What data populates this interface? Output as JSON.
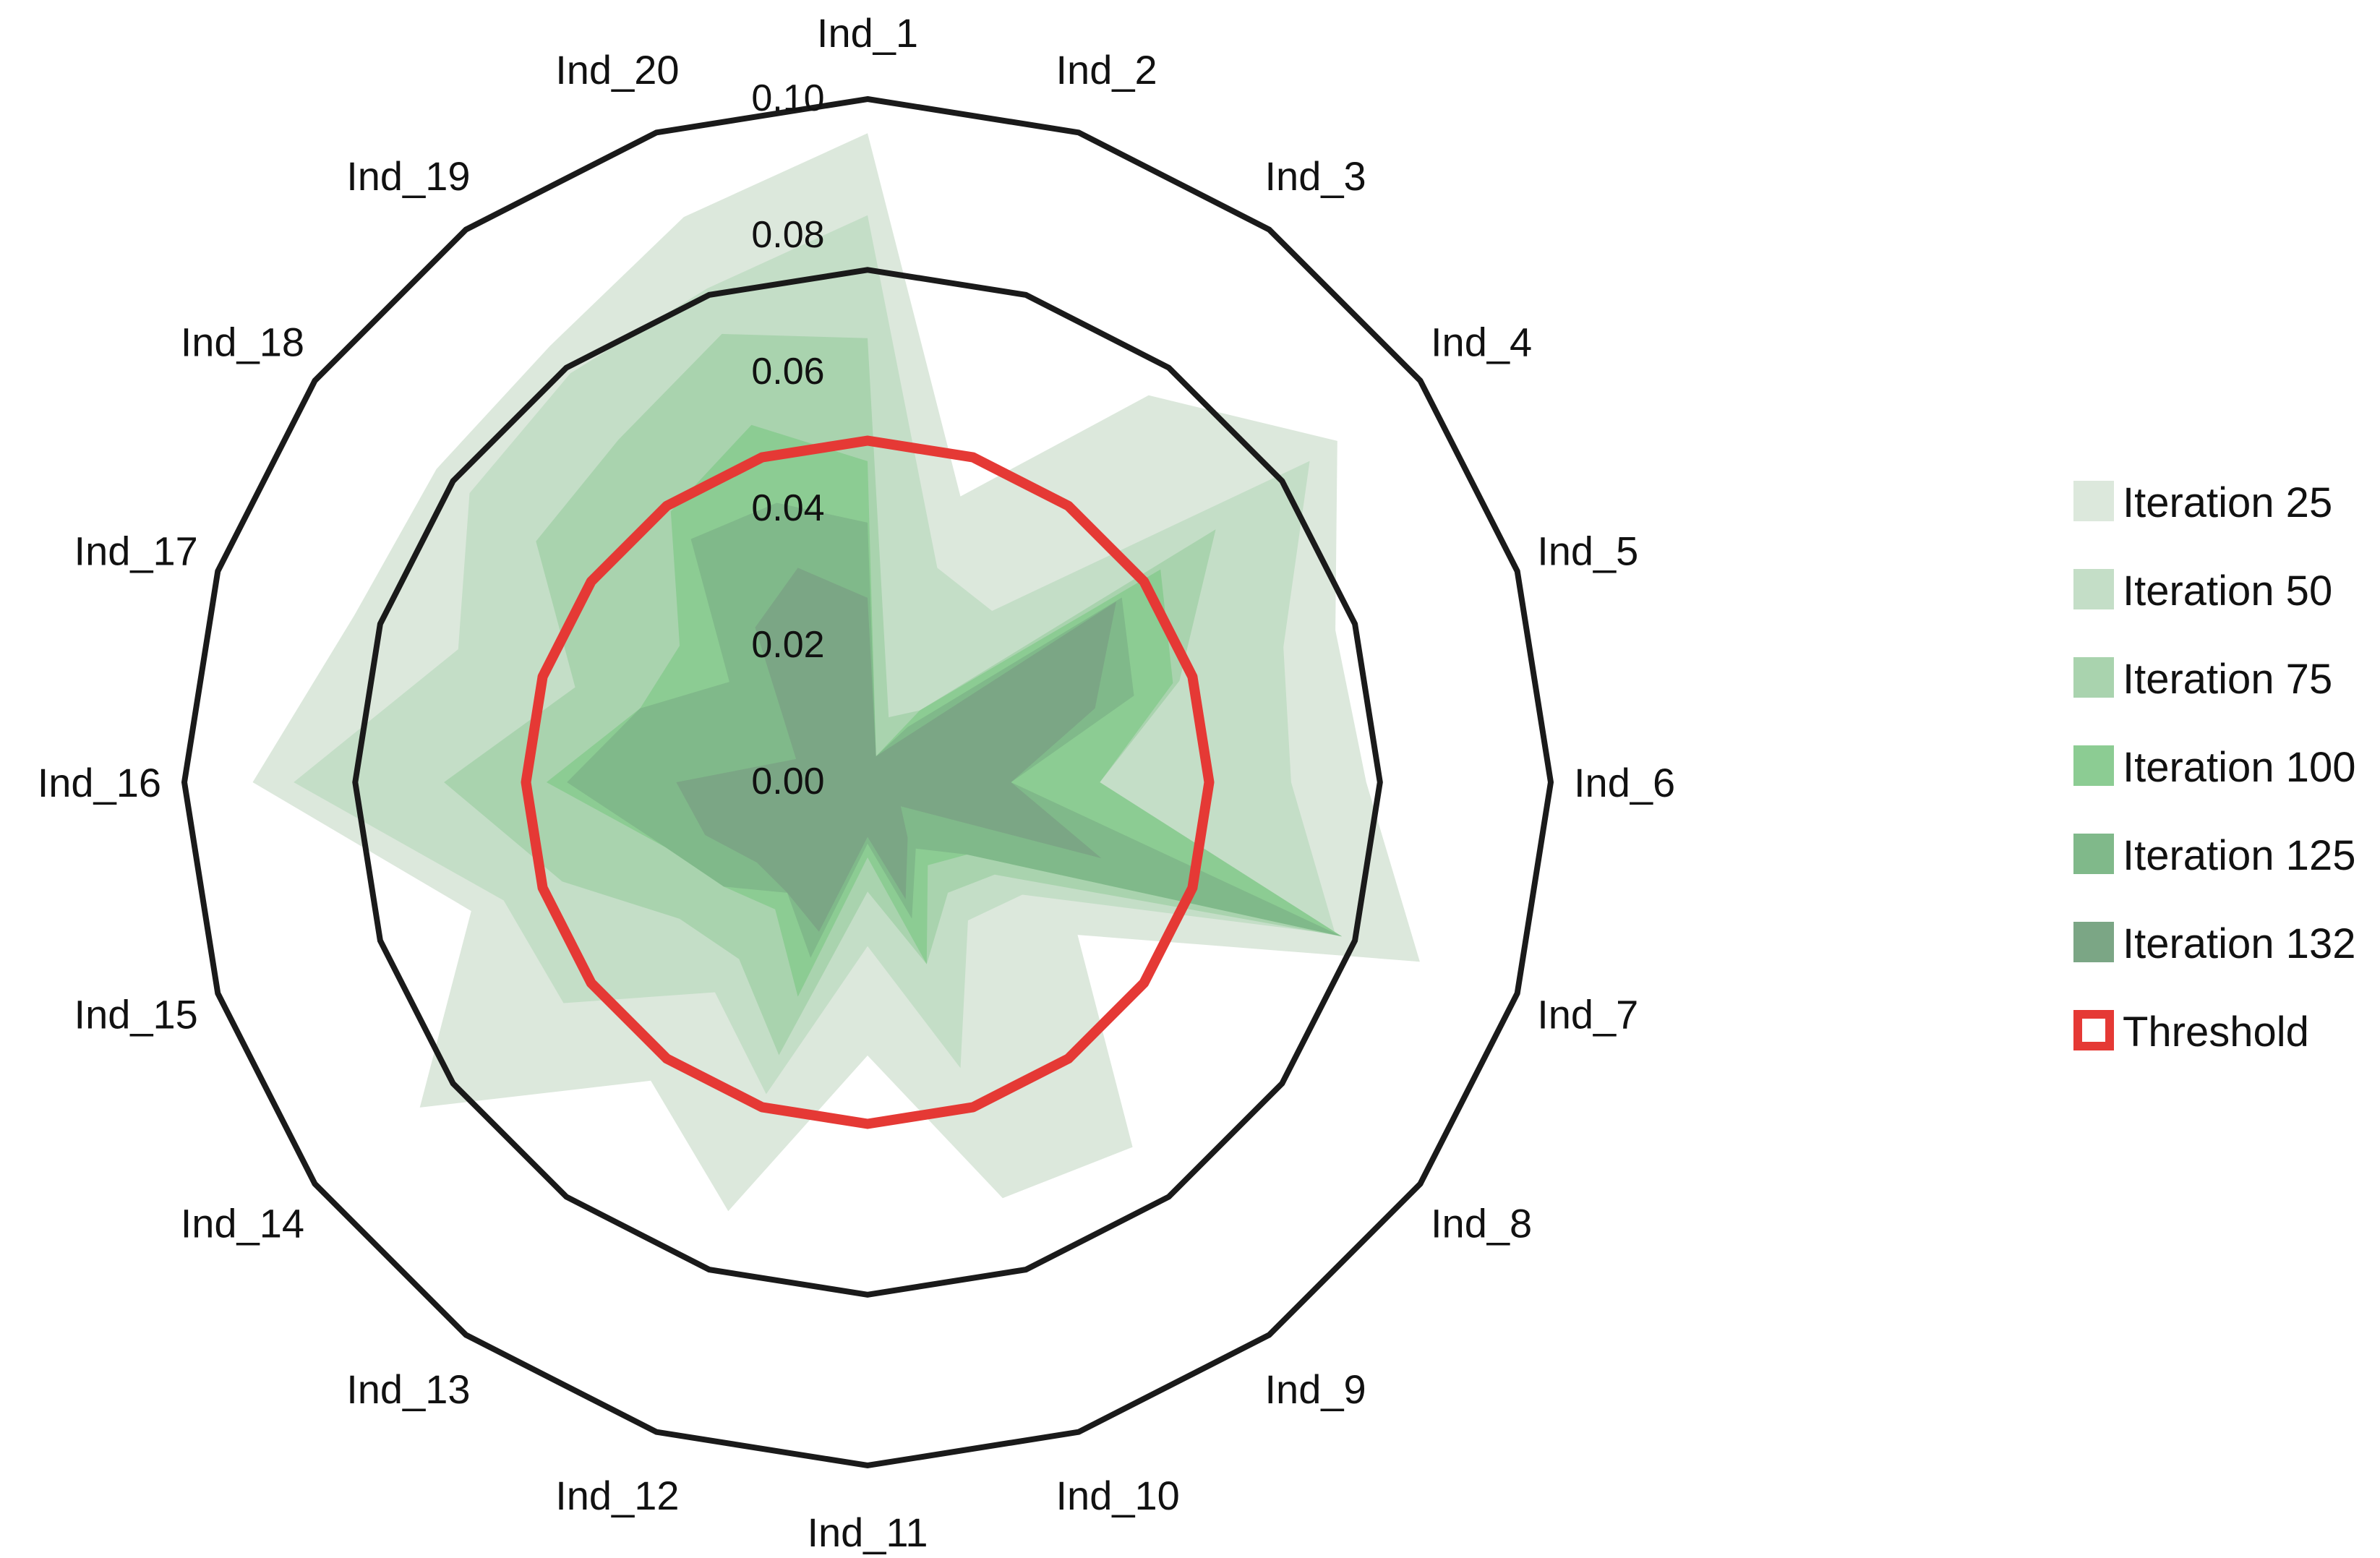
{
  "chart_data": {
    "type": "radar",
    "axes": [
      "Ind_1",
      "Ind_2",
      "Ind_3",
      "Ind_4",
      "Ind_5",
      "Ind_6",
      "Ind_7",
      "Ind_8",
      "Ind_9",
      "Ind_10",
      "Ind_11",
      "Ind_12",
      "Ind_13",
      "Ind_14",
      "Ind_15",
      "Ind_16",
      "Ind_17",
      "Ind_18",
      "Ind_19",
      "Ind_20"
    ],
    "radial_ticks": [
      "0.00",
      "0.02",
      "0.04",
      "0.06",
      "0.08",
      "0.10"
    ],
    "rlim": [
      0,
      0.1
    ],
    "grid_rings": [
      0.05,
      0.075,
      0.1
    ],
    "series": [
      {
        "name": "Iteration 25",
        "color": "#dce8dc",
        "values": [
          0.095,
          0.044,
          0.07,
          0.085,
          0.072,
          0.073,
          0.085,
          0.038,
          0.066,
          0.064,
          0.04,
          0.066,
          0.054,
          0.081,
          0.061,
          0.09,
          0.079,
          0.078,
          0.079,
          0.087
        ]
      },
      {
        "name": "Iteration 50",
        "color": "#c4dec7",
        "values": [
          0.083,
          0.033,
          0.031,
          0.08,
          0.064,
          0.062,
          0.072,
          0.028,
          0.025,
          0.044,
          0.024,
          0.048,
          0.038,
          0.055,
          0.056,
          0.084,
          0.063,
          0.072,
          0.074,
          0.076
        ]
      },
      {
        "name": "Iteration 75",
        "color": "#a9d3ae",
        "values": [
          0.065,
          0.01,
          0.013,
          0.063,
          0.048,
          0.034,
          0.073,
          0.023,
          0.02,
          0.028,
          0.016,
          0.042,
          0.032,
          0.034,
          0.047,
          0.062,
          0.045,
          0.06,
          0.062,
          0.069
        ]
      },
      {
        "name": "Iteration 100",
        "color": "#8ccc93",
        "values": [
          0.047,
          0.004,
          0.013,
          0.053,
          0.047,
          0.034,
          0.073,
          0.018,
          0.015,
          0.028,
          0.011,
          0.033,
          0.023,
          0.026,
          0.031,
          0.047,
          0.035,
          0.034,
          0.049,
          0.055
        ]
      },
      {
        "name": "Iteration 125",
        "color": "#80b98a",
        "values": [
          0.038,
          0.004,
          0.01,
          0.046,
          0.041,
          0.021,
          0.073,
          0.018,
          0.012,
          0.021,
          0.009,
          0.027,
          0.02,
          0.026,
          0.031,
          0.044,
          0.035,
          0.025,
          0.044,
          0.043
        ]
      },
      {
        "name": "Iteration 132",
        "color": "#7ba685",
        "values": [
          0.027,
          0.004,
          0.007,
          0.045,
          0.035,
          0.021,
          0.036,
          0.006,
          0.01,
          0.018,
          0.008,
          0.023,
          0.02,
          0.02,
          0.025,
          0.028,
          0.011,
          0.015,
          0.028,
          0.033
        ]
      }
    ],
    "threshold": {
      "name": "Threshold",
      "value": 0.05,
      "color": "#e53935"
    },
    "legend_position": "right"
  }
}
